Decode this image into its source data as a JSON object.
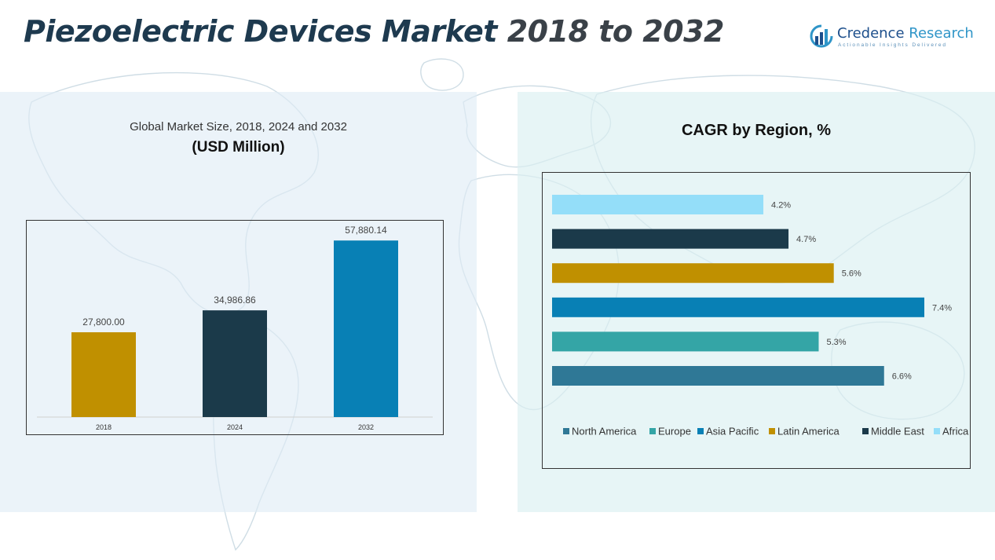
{
  "header": {
    "title_main": "Piezoelectric Devices Market",
    "title_years": "2018 to 2032"
  },
  "logo": {
    "name_part1": "Credence",
    "name_part2": "Research",
    "tagline": "Actionable Insights Delivered",
    "icon": "bar-chart-circle-icon"
  },
  "colors": {
    "north_america": "#2f7896",
    "europe": "#34a5a6",
    "asia_pacific": "#0880b5",
    "latin_america": "#c09000",
    "middle_east": "#1b3a4a",
    "africa": "#94def9"
  },
  "chart_data": [
    {
      "type": "bar",
      "title": "Global Market Size, 2018, 2024 and 2032",
      "subtitle": "(USD Million)",
      "categories": [
        "2018",
        "2024",
        "2032"
      ],
      "values": [
        27800.0,
        34986.86,
        57880.14
      ],
      "value_labels": [
        "27,800.00",
        "34,986.86",
        "57,880.14"
      ],
      "colors": [
        "#c09000",
        "#1b3a4a",
        "#0880b5"
      ],
      "ylim": [
        0,
        60000
      ],
      "grid": false,
      "legend": "none"
    },
    {
      "type": "bar",
      "orientation": "horizontal",
      "title": "CAGR by Region, %",
      "categories": [
        "Africa",
        "Middle East",
        "Latin America",
        "Asia Pacific",
        "Europe",
        "North America"
      ],
      "values": [
        4.2,
        4.7,
        5.6,
        7.4,
        5.3,
        6.6
      ],
      "value_labels": [
        "4.2%",
        "4.7%",
        "5.6%",
        "7.4%",
        "5.3%",
        "6.6%"
      ],
      "colors": [
        "#94def9",
        "#1b3a4a",
        "#c09000",
        "#0880b5",
        "#34a5a6",
        "#2f7896"
      ],
      "xlim": [
        0,
        7.4
      ],
      "grid": false,
      "legend": "bottom",
      "legend_entries": [
        "North America",
        "Europe",
        "Asia Pacific",
        "Latin America",
        "Middle East",
        "Africa"
      ],
      "legend_colors": [
        "#2f7896",
        "#34a5a6",
        "#0880b5",
        "#c09000",
        "#1b3a4a",
        "#94def9"
      ]
    }
  ]
}
